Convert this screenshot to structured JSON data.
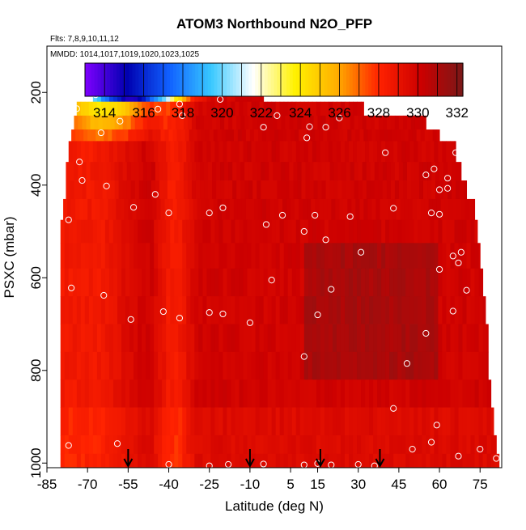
{
  "chart_data": {
    "type": "heatmap",
    "title": "ATOM3 Northbound N2O_PFP",
    "subtitle_flights": "Flts: 7,8,9,10,11,12",
    "subtitle_dates": "MMDD: 1014,1017,1019,1020,1023,1025",
    "xlabel": "Latitude (deg N)",
    "ylabel": "PSXC (mbar)",
    "xlim": [
      -85,
      83
    ],
    "ylim": [
      1010,
      100
    ],
    "x_ticks": [
      -85,
      -70,
      -55,
      -40,
      -25,
      -10,
      5,
      15,
      30,
      45,
      60,
      75
    ],
    "y_ticks": [
      200,
      400,
      600,
      800,
      1000
    ],
    "colorbar": {
      "min": 313,
      "max": 332.3,
      "ticks": [
        314,
        316,
        318,
        320,
        322,
        324,
        326,
        328,
        330,
        332
      ],
      "colors": [
        "#7f00ff",
        "#0000b0",
        "#1060ff",
        "#38c8ff",
        "#ffffff",
        "#fff200",
        "#ffae00",
        "#ff2200",
        "#cc0000",
        "#7a1818"
      ]
    },
    "arrows_x": [
      -55,
      -10,
      16,
      38
    ],
    "sample_points": [
      {
        "x": -67,
        "y": 205
      },
      {
        "x": -36,
        "y": 225
      },
      {
        "x": -21,
        "y": 215
      },
      {
        "x": -12,
        "y": 195
      },
      {
        "x": -74,
        "y": 235
      },
      {
        "x": -58,
        "y": 262
      },
      {
        "x": -44,
        "y": 236
      },
      {
        "x": -35,
        "y": 250
      },
      {
        "x": -65,
        "y": 287
      },
      {
        "x": -5,
        "y": 275
      },
      {
        "x": 0,
        "y": 250
      },
      {
        "x": 18,
        "y": 275
      },
      {
        "x": 23,
        "y": 255
      },
      {
        "x": 12,
        "y": 274
      },
      {
        "x": 11,
        "y": 298
      },
      {
        "x": 40,
        "y": 330
      },
      {
        "x": 55,
        "y": 378
      },
      {
        "x": 58,
        "y": 365
      },
      {
        "x": 63,
        "y": 385
      },
      {
        "x": 66,
        "y": 330
      },
      {
        "x": -73,
        "y": 350
      },
      {
        "x": -72,
        "y": 390
      },
      {
        "x": -63,
        "y": 402
      },
      {
        "x": -77,
        "y": 475
      },
      {
        "x": -53,
        "y": 448
      },
      {
        "x": -45,
        "y": 420
      },
      {
        "x": -40,
        "y": 460
      },
      {
        "x": -25,
        "y": 460
      },
      {
        "x": -20,
        "y": 449
      },
      {
        "x": -4,
        "y": 485
      },
      {
        "x": 2,
        "y": 465
      },
      {
        "x": 14,
        "y": 465
      },
      {
        "x": 10,
        "y": 500
      },
      {
        "x": 18,
        "y": 518
      },
      {
        "x": 27,
        "y": 468
      },
      {
        "x": 43,
        "y": 450
      },
      {
        "x": 57,
        "y": 460
      },
      {
        "x": 60,
        "y": 463
      },
      {
        "x": 60,
        "y": 410
      },
      {
        "x": 63,
        "y": 407
      },
      {
        "x": 72,
        "y": 405
      },
      {
        "x": 31,
        "y": 545
      },
      {
        "x": 65,
        "y": 553
      },
      {
        "x": 68,
        "y": 545
      },
      {
        "x": 67,
        "y": 568
      },
      {
        "x": 60,
        "y": 582
      },
      {
        "x": -76,
        "y": 622
      },
      {
        "x": -64,
        "y": 638
      },
      {
        "x": -2,
        "y": 605
      },
      {
        "x": 20,
        "y": 625
      },
      {
        "x": -54,
        "y": 690
      },
      {
        "x": -42,
        "y": 673
      },
      {
        "x": -36,
        "y": 687
      },
      {
        "x": -25,
        "y": 675
      },
      {
        "x": -20,
        "y": 678
      },
      {
        "x": -10,
        "y": 697
      },
      {
        "x": 15,
        "y": 680
      },
      {
        "x": 55,
        "y": 720
      },
      {
        "x": 65,
        "y": 672
      },
      {
        "x": 70,
        "y": 627
      },
      {
        "x": 10,
        "y": 770
      },
      {
        "x": 48,
        "y": 785
      },
      {
        "x": 43,
        "y": 882
      },
      {
        "x": 59,
        "y": 918
      },
      {
        "x": 57,
        "y": 955
      },
      {
        "x": -77,
        "y": 962
      },
      {
        "x": -59,
        "y": 958
      },
      {
        "x": -40,
        "y": 1003
      },
      {
        "x": -25,
        "y": 1006
      },
      {
        "x": -18,
        "y": 1003
      },
      {
        "x": -5,
        "y": 1002
      },
      {
        "x": 10,
        "y": 1004
      },
      {
        "x": 15,
        "y": 1001
      },
      {
        "x": 20,
        "y": 1004
      },
      {
        "x": 30,
        "y": 1003
      },
      {
        "x": 36,
        "y": 1006
      },
      {
        "x": 50,
        "y": 970
      },
      {
        "x": 67,
        "y": 985
      },
      {
        "x": 75,
        "y": 970
      },
      {
        "x": 81,
        "y": 990
      }
    ]
  }
}
